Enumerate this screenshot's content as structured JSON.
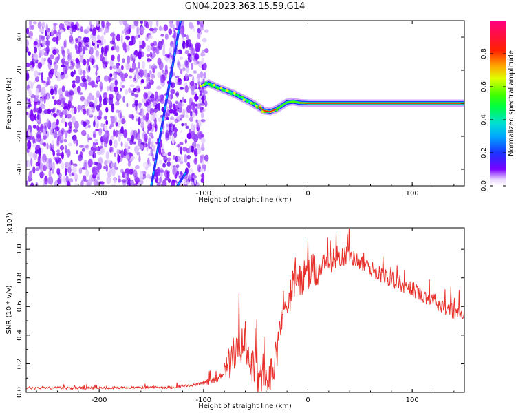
{
  "figure": {
    "title": "GN04.2023.363.15.59.G14"
  },
  "chart_data": [
    {
      "type": "heatmap",
      "xlabel": "Height of straight line (km)",
      "ylabel": "Frequency (Hz)",
      "xlim": [
        -270,
        150
      ],
      "ylim": [
        -50,
        50
      ],
      "x_ticks": [
        -200,
        -100,
        0,
        100
      ],
      "x_tick_labels": [
        "-200",
        "-100",
        "0",
        "100"
      ],
      "y_ticks": [
        -40,
        -20,
        0,
        20,
        40
      ],
      "y_tick_labels": [
        "-40",
        "-20",
        "0",
        "20",
        "40"
      ],
      "colorbar": {
        "label": "Normalized spectral amplitude",
        "range": [
          0,
          1
        ],
        "ticks": [
          0.0,
          0.2,
          0.4,
          0.6,
          0.8
        ],
        "tick_labels": [
          "0.0",
          "0.2",
          "0.4",
          "0.6",
          "0.8"
        ],
        "colormap": "rainbow"
      },
      "noise_region_x": [
        -270,
        -100
      ],
      "frequency_trace": [
        {
          "x": -102,
          "f": 10.5
        },
        {
          "x": -95,
          "f": 12
        },
        {
          "x": -88,
          "f": 10
        },
        {
          "x": -80,
          "f": 8
        },
        {
          "x": -72,
          "f": 6
        },
        {
          "x": -64,
          "f": 3.5
        },
        {
          "x": -56,
          "f": 1
        },
        {
          "x": -48,
          "f": -2
        },
        {
          "x": -42,
          "f": -4.5
        },
        {
          "x": -36,
          "f": -5
        },
        {
          "x": -30,
          "f": -3.5
        },
        {
          "x": -25,
          "f": -1.5
        },
        {
          "x": -20,
          "f": 0.5
        },
        {
          "x": -14,
          "f": 1
        },
        {
          "x": -8,
          "f": 0.3
        },
        {
          "x": 0,
          "f": 0
        },
        {
          "x": 150,
          "f": 0
        }
      ],
      "slant_tracks": [
        {
          "x0": -150,
          "f0": -50,
          "x1": -122,
          "f1": 50
        },
        {
          "x0": -125,
          "f0": -50,
          "x1": -117,
          "f1": -42
        }
      ]
    },
    {
      "type": "line",
      "xlabel": "Height of straight line (km)",
      "ylabel": "SNR (10 * v/v)",
      "y_multiplier": "(x10",
      "y_multiplier_exp": "4",
      "y_multiplier_close": ")",
      "xlim": [
        -270,
        150
      ],
      "ylim": [
        0,
        1.15
      ],
      "x_ticks": [
        -200,
        -100,
        0,
        100
      ],
      "x_tick_labels": [
        "-200",
        "-100",
        "0",
        "100"
      ],
      "y_ticks": [
        0.0,
        0.2,
        0.4,
        0.6,
        0.8,
        1.0
      ],
      "y_tick_labels": [
        "0.0",
        "0.2",
        "0.4",
        "0.6",
        "0.8",
        "1.0"
      ],
      "color": "#e8302a",
      "series": [
        {
          "envelope": [
            {
              "x": -270,
              "y": 0.03
            },
            {
              "x": -200,
              "y": 0.03
            },
            {
              "x": -130,
              "y": 0.035
            },
            {
              "x": -110,
              "y": 0.05
            },
            {
              "x": -95,
              "y": 0.07
            },
            {
              "x": -85,
              "y": 0.1
            },
            {
              "x": -78,
              "y": 0.16
            },
            {
              "x": -72,
              "y": 0.25
            },
            {
              "x": -65,
              "y": 0.3
            },
            {
              "x": -60,
              "y": 0.35
            },
            {
              "x": -55,
              "y": 0.2
            },
            {
              "x": -48,
              "y": 0.09
            },
            {
              "x": -42,
              "y": 0.06
            },
            {
              "x": -35,
              "y": 0.12
            },
            {
              "x": -28,
              "y": 0.35
            },
            {
              "x": -22,
              "y": 0.58
            },
            {
              "x": -15,
              "y": 0.72
            },
            {
              "x": -8,
              "y": 0.78
            },
            {
              "x": 0,
              "y": 0.8
            },
            {
              "x": 10,
              "y": 0.85
            },
            {
              "x": 20,
              "y": 0.9
            },
            {
              "x": 30,
              "y": 0.95
            },
            {
              "x": 40,
              "y": 0.95
            },
            {
              "x": 55,
              "y": 0.88
            },
            {
              "x": 70,
              "y": 0.82
            },
            {
              "x": 90,
              "y": 0.75
            },
            {
              "x": 110,
              "y": 0.68
            },
            {
              "x": 130,
              "y": 0.6
            },
            {
              "x": 150,
              "y": 0.52
            }
          ]
        }
      ]
    }
  ]
}
